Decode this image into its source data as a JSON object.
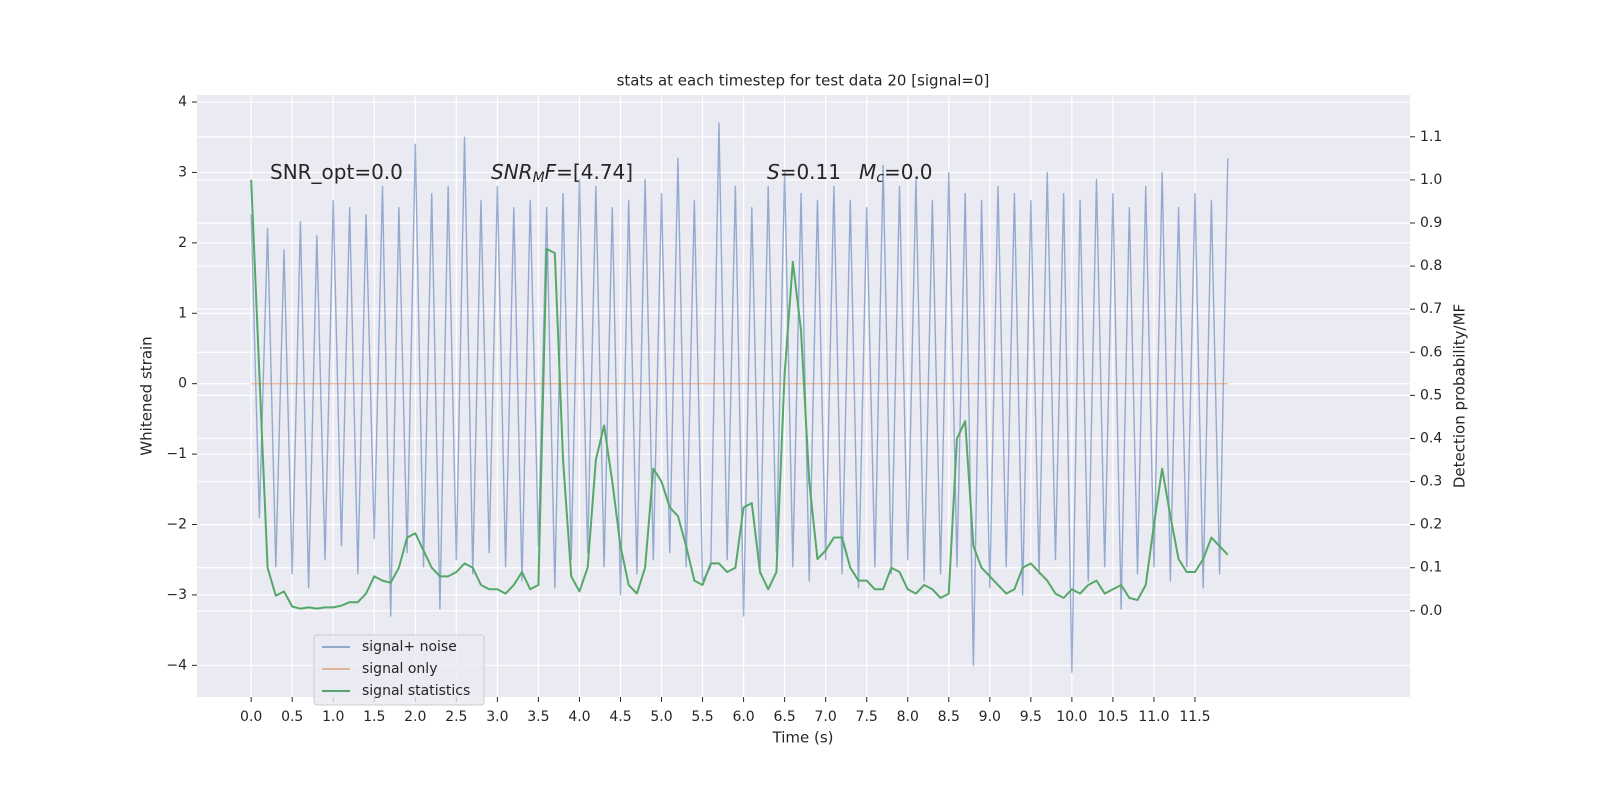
{
  "chart_data": {
    "type": "line",
    "title": "stats at each timestep for test data 20 [signal=0]",
    "xlabel": "Time (s)",
    "ylabel": "Whitened strain",
    "y2label": "Detection probability/MF",
    "annotations": [
      [
        {
          "text": "SNR_opt=0.0"
        }
      ],
      [
        {
          "text": "SNR",
          "style": "italic"
        },
        {
          "text": "M",
          "style": "sub"
        },
        {
          "text": "F",
          "style": "italic"
        },
        {
          "text": "=[4.74]"
        }
      ],
      [
        {
          "text": "S",
          "style": "italic"
        },
        {
          "text": "=0.11"
        }
      ],
      [
        {
          "text": "M",
          "style": "italic"
        },
        {
          "text": "c",
          "style": "sub"
        },
        {
          "text": "=0.0"
        }
      ]
    ],
    "grid": true,
    "legend": "lower left",
    "xlim": [
      -0.66,
      14.12
    ],
    "ylim": [
      -4.45,
      4.1
    ],
    "y2lim": [
      -0.2,
      1.197
    ],
    "xticks": [
      {
        "value": 0,
        "label": "0.0"
      },
      {
        "value": 0.5,
        "label": "0.5"
      },
      {
        "value": 1,
        "label": "1.0"
      },
      {
        "value": 1.5,
        "label": "1.5"
      },
      {
        "value": 2,
        "label": "2.0"
      },
      {
        "value": 2.5,
        "label": "2.5"
      },
      {
        "value": 3,
        "label": "3.0"
      },
      {
        "value": 3.5,
        "label": "3.5"
      },
      {
        "value": 4,
        "label": "4.0"
      },
      {
        "value": 4.5,
        "label": "4.5"
      },
      {
        "value": 5,
        "label": "5.0"
      },
      {
        "value": 5.5,
        "label": "5.5"
      },
      {
        "value": 6,
        "label": "6.0"
      },
      {
        "value": 6.5,
        "label": "6.5"
      },
      {
        "value": 7,
        "label": "7.0"
      },
      {
        "value": 7.5,
        "label": "7.5"
      },
      {
        "value": 8,
        "label": "8.0"
      },
      {
        "value": 8.5,
        "label": "8.5"
      },
      {
        "value": 9,
        "label": "9.0"
      },
      {
        "value": 9.5,
        "label": "9.5"
      },
      {
        "value": 10,
        "label": "10.0"
      },
      {
        "value": 10.5,
        "label": "10.5"
      },
      {
        "value": 11,
        "label": "11.0"
      },
      {
        "value": 11.5,
        "label": "11.5"
      }
    ],
    "yticks": [
      {
        "value": -4,
        "label": "−4"
      },
      {
        "value": -3,
        "label": "−3"
      },
      {
        "value": -2,
        "label": "−2"
      },
      {
        "value": -1,
        "label": "−1"
      },
      0,
      1,
      2,
      3,
      4
    ],
    "y2ticks": [
      {
        "value": 0,
        "label": "0.0"
      },
      {
        "value": 0.1,
        "label": "0.1"
      },
      {
        "value": 0.2,
        "label": "0.2"
      },
      {
        "value": 0.3,
        "label": "0.3"
      },
      {
        "value": 0.4,
        "label": "0.4"
      },
      {
        "value": 0.5,
        "label": "0.5"
      },
      {
        "value": 0.6,
        "label": "0.6"
      },
      {
        "value": 0.7,
        "label": "0.7"
      },
      {
        "value": 0.8,
        "label": "0.8"
      },
      {
        "value": 0.9,
        "label": "0.9"
      },
      {
        "value": 1.0,
        "label": "1.0"
      },
      {
        "value": 1.1,
        "label": "1.1"
      }
    ],
    "x": [
      0,
      0.1,
      0.2,
      0.3,
      0.4,
      0.5,
      0.6,
      0.7,
      0.8,
      0.9,
      1,
      1.1,
      1.2,
      1.3,
      1.4,
      1.5,
      1.6,
      1.7,
      1.8,
      1.9,
      2,
      2.1,
      2.2,
      2.3,
      2.4,
      2.5,
      2.6,
      2.7,
      2.8,
      2.9,
      3,
      3.1,
      3.2,
      3.3,
      3.4,
      3.5,
      3.6,
      3.7,
      3.8,
      3.9,
      4,
      4.1,
      4.2,
      4.3,
      4.4,
      4.5,
      4.6,
      4.7,
      4.8,
      4.9,
      5,
      5.1,
      5.2,
      5.3,
      5.4,
      5.5,
      5.6,
      5.7,
      5.8,
      5.9,
      6,
      6.1,
      6.2,
      6.3,
      6.4,
      6.5,
      6.6,
      6.7,
      6.8,
      6.9,
      7,
      7.1,
      7.2,
      7.3,
      7.4,
      7.5,
      7.6,
      7.7,
      7.8,
      7.9,
      8,
      8.1,
      8.2,
      8.3,
      8.4,
      8.5,
      8.6,
      8.7,
      8.8,
      8.9,
      9,
      9.1,
      9.2,
      9.3,
      9.4,
      9.5,
      9.6,
      9.7,
      9.8,
      9.9,
      10,
      10.1,
      10.2,
      10.3,
      10.4,
      10.5,
      10.6,
      10.7,
      10.8,
      10.9,
      11,
      11.1,
      11.2,
      11.3,
      11.4,
      11.5,
      11.6,
      11.7,
      11.8,
      11.9
    ],
    "series": [
      {
        "name": "signal+ noise",
        "color": "#4c72b0",
        "axis": "y",
        "values": [
          2.4,
          -1.9,
          2.2,
          -2.6,
          1.9,
          -2.7,
          2.3,
          -2.9,
          2.1,
          -2.5,
          2.6,
          -2.3,
          2.5,
          -2.7,
          2.4,
          -2.2,
          2.8,
          -3.3,
          2.5,
          -2.4,
          3.4,
          -2.6,
          2.7,
          -3.2,
          2.8,
          -2.5,
          3.5,
          -2.7,
          2.6,
          -2.4,
          2.8,
          -2.6,
          2.5,
          -2.8,
          2.6,
          -2.3,
          2.5,
          -2.9,
          2.7,
          -2.5,
          2.9,
          -2.4,
          2.8,
          -2.6,
          2.5,
          -3.0,
          2.6,
          -2.7,
          2.9,
          -2.5,
          2.7,
          -2.4,
          3.2,
          -2.6,
          2.6,
          -2.8,
          -2.6,
          3.7,
          -2.5,
          2.8,
          -3.3,
          2.5,
          -2.7,
          2.8,
          -2.4,
          3.0,
          -2.6,
          2.7,
          -2.8,
          2.6,
          -2.5,
          2.8,
          -2.7,
          2.6,
          -2.9,
          2.5,
          -2.6,
          3.1,
          -2.7,
          2.8,
          -2.5,
          2.9,
          -2.8,
          2.6,
          -2.7,
          3.0,
          -2.6,
          2.7,
          -4.0,
          2.6,
          -2.9,
          2.8,
          -2.6,
          2.7,
          -3.0,
          2.6,
          -2.7,
          3.0,
          -2.5,
          2.7,
          -4.1,
          2.6,
          -2.8,
          2.9,
          -2.6,
          2.7,
          -3.2,
          2.5,
          -2.7,
          2.8,
          -2.6,
          3.0,
          -2.8,
          2.5,
          -2.6,
          2.7,
          -2.9,
          2.6,
          -2.7,
          3.2
        ]
      },
      {
        "name": "signal only",
        "color": "#dd8452",
        "axis": "y",
        "values": [
          0,
          0,
          0,
          0,
          0,
          0,
          0,
          0,
          0,
          0,
          0,
          0,
          0,
          0,
          0,
          0,
          0,
          0,
          0,
          0,
          0,
          0,
          0,
          0,
          0,
          0,
          0,
          0,
          0,
          0,
          0,
          0,
          0,
          0,
          0,
          0,
          0,
          0,
          0,
          0,
          0,
          0,
          0,
          0,
          0,
          0,
          0,
          0,
          0,
          0,
          0,
          0,
          0,
          0,
          0,
          0,
          0,
          0,
          0,
          0,
          0,
          0,
          0,
          0,
          0,
          0,
          0,
          0,
          0,
          0,
          0,
          0,
          0,
          0,
          0,
          0,
          0,
          0,
          0,
          0,
          0,
          0,
          0,
          0,
          0,
          0,
          0,
          0,
          0,
          0,
          0,
          0,
          0,
          0,
          0,
          0,
          0,
          0,
          0,
          0,
          0,
          0,
          0,
          0,
          0,
          0,
          0,
          0,
          0,
          0,
          0,
          0,
          0,
          0,
          0,
          0,
          0,
          0,
          0,
          0
        ]
      },
      {
        "name": "signal statistics",
        "color": "#55a868",
        "axis": "y2",
        "values": [
          1.0,
          0.55,
          0.1,
          0.035,
          0.045,
          0.01,
          0.005,
          0.008,
          0.005,
          0.008,
          0.008,
          0.012,
          0.02,
          0.02,
          0.04,
          0.08,
          0.07,
          0.065,
          0.1,
          0.17,
          0.18,
          0.14,
          0.1,
          0.08,
          0.08,
          0.09,
          0.11,
          0.1,
          0.06,
          0.05,
          0.05,
          0.04,
          0.06,
          0.09,
          0.05,
          0.06,
          0.84,
          0.83,
          0.35,
          0.08,
          0.045,
          0.1,
          0.35,
          0.43,
          0.3,
          0.15,
          0.06,
          0.04,
          0.1,
          0.33,
          0.3,
          0.24,
          0.22,
          0.15,
          0.07,
          0.06,
          0.11,
          0.11,
          0.09,
          0.1,
          0.24,
          0.25,
          0.09,
          0.05,
          0.09,
          0.55,
          0.81,
          0.65,
          0.3,
          0.12,
          0.14,
          0.17,
          0.17,
          0.1,
          0.07,
          0.07,
          0.05,
          0.05,
          0.1,
          0.09,
          0.05,
          0.04,
          0.06,
          0.05,
          0.03,
          0.04,
          0.4,
          0.44,
          0.15,
          0.1,
          0.08,
          0.06,
          0.04,
          0.05,
          0.1,
          0.11,
          0.09,
          0.07,
          0.04,
          0.03,
          0.05,
          0.04,
          0.06,
          0.07,
          0.04,
          0.05,
          0.06,
          0.03,
          0.025,
          0.06,
          0.2,
          0.33,
          0.22,
          0.12,
          0.09,
          0.09,
          0.12,
          0.17,
          0.15,
          0.13
        ]
      }
    ]
  }
}
